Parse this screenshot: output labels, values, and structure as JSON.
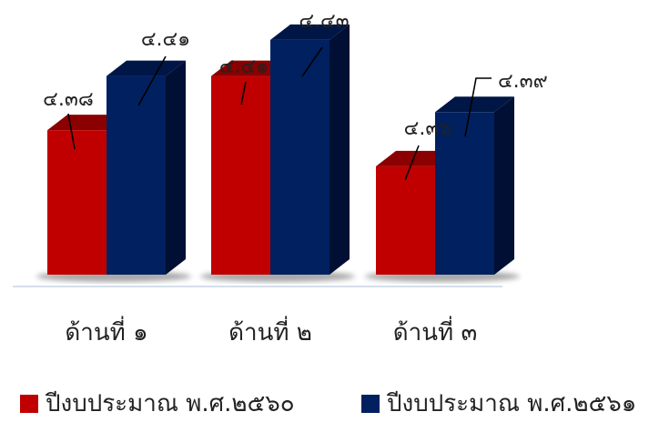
{
  "chart_data": {
    "type": "bar",
    "categories": [
      "ด้านที่ ๑",
      "ด้านที่ ๒",
      "ด้านที่ ๓"
    ],
    "series": [
      {
        "name": "ปีงบประมาณ พ.ศ.๒๕๖๐",
        "values": [
          4.38,
          4.41,
          4.36
        ],
        "labels": [
          "๔.๓๘",
          "๔.๔๑",
          "๔.๓๖"
        ],
        "color": "#C00000"
      },
      {
        "name": "ปีงบประมาณ พ.ศ.๒๕๖๑",
        "values": [
          4.41,
          4.43,
          4.39
        ],
        "labels": [
          "๔.๔๑",
          "๔.๔๓",
          "๔.๓๙"
        ],
        "color": "#002060"
      }
    ],
    "ylim": [
      4.3,
      4.44
    ],
    "bar_style": "3d",
    "legend_position": "bottom",
    "grid": false
  }
}
